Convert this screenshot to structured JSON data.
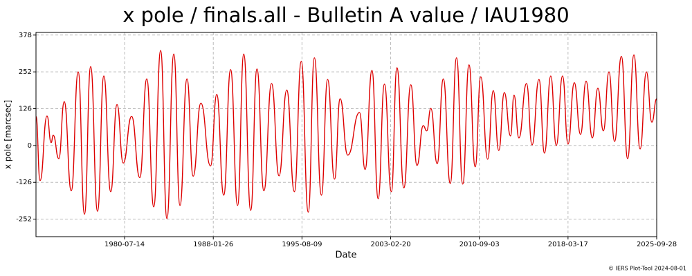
{
  "chart_data": {
    "type": "line",
    "title": "x pole / finals.all - Bulletin A value / IAU1980",
    "x_label": "Date",
    "y_label": "x pole [marcsec]",
    "footer": "© IERS Plot-Tool 2024-08-01",
    "xlim": [
      "1973-01-02",
      "2025-09-28"
    ],
    "xticks": [
      "1980-07-14",
      "1988-01-26",
      "1995-08-09",
      "2003-02-20",
      "2010-09-03",
      "2018-03-17",
      "2025-09-28"
    ],
    "ylim": [
      -312,
      387
    ],
    "yticks": [
      -252,
      -126,
      0,
      126,
      252,
      378
    ],
    "grid": true,
    "x": [
      "1973-01-02",
      "1973-05-09",
      "1973-12-10",
      "1974-04-17",
      "1974-06-21",
      "1974-12-11",
      "1975-05-28",
      "1976-01-02",
      "1976-08-04",
      "1977-02-15",
      "1977-08-25",
      "1978-03-27",
      "1978-10-08",
      "1979-05-10",
      "1979-11-21",
      "1980-06-02",
      "1981-02-16",
      "1981-10-28",
      "1982-06-02",
      "1983-01-04",
      "1983-08-06",
      "1984-02-17",
      "1984-09-18",
      "1985-03-28",
      "1985-11-01",
      "1986-05-12",
      "1987-01-05",
      "1987-11-02",
      "1988-05-12",
      "1988-12-15",
      "1989-07-16",
      "1990-02-18",
      "1990-08-28",
      "1991-04-01",
      "1991-10-12",
      "1992-05-14",
      "1993-01-07",
      "1993-08-28",
      "1994-04-23",
      "1994-12-16",
      "1995-07-18",
      "1996-02-20",
      "1996-08-28",
      "1997-04-03",
      "1997-10-13",
      "1998-05-15",
      "1998-11-05",
      "1999-06-28",
      "2000-06-28",
      "2000-12-18",
      "2001-07-20",
      "2002-01-28",
      "2002-08-11",
      "2003-03-13",
      "2003-09-03",
      "2004-04-05",
      "2004-11-06",
      "2005-05-17",
      "2005-11-28",
      "2006-03-14",
      "2006-07-21",
      "2007-02-02",
      "2007-08-12",
      "2008-03-15",
      "2008-09-25",
      "2009-04-06",
      "2009-10-17",
      "2010-04-27",
      "2010-10-17",
      "2011-05-19",
      "2011-11-09",
      "2012-04-28",
      "2012-10-17",
      "2013-04-28",
      "2013-08-14",
      "2014-01-12",
      "2014-09-06",
      "2015-02-25",
      "2015-09-27",
      "2016-03-17",
      "2016-09-27",
      "2017-03-17",
      "2017-09-28",
      "2018-03-17",
      "2018-09-28",
      "2019-04-09",
      "2019-09-28",
      "2020-04-09",
      "2020-09-28",
      "2021-03-18",
      "2021-09-08",
      "2022-02-27",
      "2022-09-28",
      "2023-04-10",
      "2023-10-21",
      "2024-05-01",
      "2024-11-12",
      "2025-05-01",
      "2025-09-28"
    ],
    "series": [
      {
        "color": "#dd0000",
        "values": [
          100,
          -120,
          101,
          10,
          35,
          -45,
          150,
          -155,
          252,
          -235,
          270,
          -225,
          238,
          -158,
          140,
          -60,
          100,
          -110,
          228,
          -210,
          325,
          -250,
          313,
          -205,
          228,
          -105,
          145,
          -70,
          175,
          -170,
          260,
          -205,
          313,
          -222,
          262,
          -155,
          212,
          -104,
          190,
          -158,
          288,
          -228,
          300,
          -170,
          226,
          -115,
          160,
          -33,
          113,
          -82,
          257,
          -182,
          210,
          -158,
          266,
          -145,
          208,
          -68,
          68,
          50,
          127,
          -62,
          228,
          -130,
          300,
          -132,
          276,
          -73,
          235,
          -47,
          188,
          -17,
          181,
          33,
          172,
          26,
          212,
          2,
          226,
          -26,
          238,
          0,
          238,
          5,
          215,
          38,
          220,
          26,
          196,
          50,
          252,
          14,
          305,
          -45,
          310,
          -12,
          252,
          80,
          160
        ]
      }
    ]
  }
}
